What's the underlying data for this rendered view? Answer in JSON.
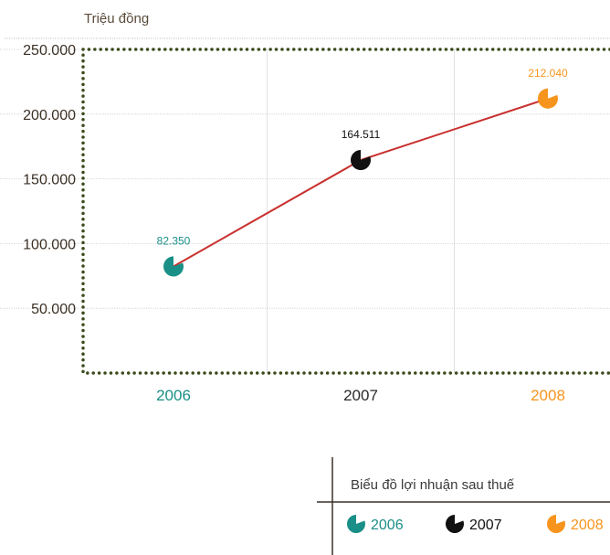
{
  "chart_data": {
    "type": "line",
    "unit_label": "Triệu đồng",
    "categories": [
      "2006",
      "2007",
      "2008"
    ],
    "values": [
      82350,
      164511,
      212040
    ],
    "data_labels": [
      "82.350",
      "164.511",
      "212.040"
    ],
    "point_colors": [
      "#1a8f87",
      "#111111",
      "#f7941d"
    ],
    "line_color": "#c8302e",
    "border_color": "#3a4a1a",
    "ylim": [
      0,
      250000
    ],
    "yticks": [
      50000,
      100000,
      150000,
      200000,
      250000
    ],
    "ytick_labels": [
      "50.000",
      "100.000",
      "150.000",
      "200.000",
      "250.000"
    ],
    "grid": true,
    "legend": {
      "title": "Biểu đồ lợi nhuận sau thuế",
      "placement": "bottom-right",
      "entries": [
        "2006",
        "2007",
        "2008"
      ]
    }
  }
}
